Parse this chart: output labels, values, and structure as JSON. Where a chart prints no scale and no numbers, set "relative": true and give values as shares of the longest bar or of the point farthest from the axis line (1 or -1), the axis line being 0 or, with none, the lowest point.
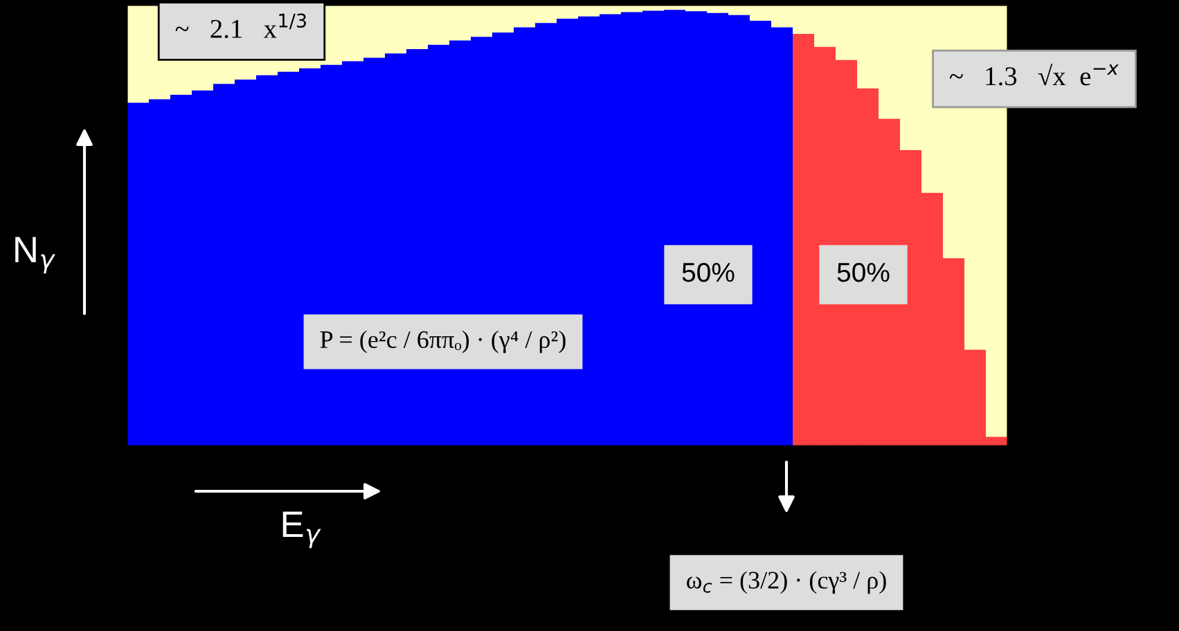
{
  "chart_data": {
    "type": "bar",
    "relative": true,
    "xlabel": "E$_{γ}$",
    "ylabel": "N$_{γ}$",
    "categories": [
      null,
      null,
      null,
      null,
      null,
      null,
      null,
      null,
      null,
      null,
      null,
      null,
      null,
      null,
      null,
      null,
      null,
      null,
      null,
      null,
      null,
      null,
      null,
      null,
      null,
      null,
      null,
      null,
      null,
      null,
      null,
      null,
      null,
      null,
      null,
      null,
      null,
      null,
      null,
      null,
      null
    ],
    "values": [
      0.787,
      0.795,
      0.805,
      0.815,
      0.83,
      0.84,
      0.85,
      0.858,
      0.866,
      0.874,
      0.882,
      0.89,
      0.9,
      0.91,
      0.92,
      0.93,
      0.938,
      0.948,
      0.96,
      0.97,
      0.98,
      0.985,
      0.99,
      0.995,
      0.998,
      1.0,
      0.997,
      0.993,
      0.988,
      0.975,
      0.96,
      0.945,
      0.915,
      0.885,
      0.82,
      0.75,
      0.678,
      0.58,
      0.43,
      0.22,
      0.02
    ],
    "colors": [
      "#0000ff",
      "#0000ff",
      "#0000ff",
      "#0000ff",
      "#0000ff",
      "#0000ff",
      "#0000ff",
      "#0000ff",
      "#0000ff",
      "#0000ff",
      "#0000ff",
      "#0000ff",
      "#0000ff",
      "#0000ff",
      "#0000ff",
      "#0000ff",
      "#0000ff",
      "#0000ff",
      "#0000ff",
      "#0000ff",
      "#0000ff",
      "#0000ff",
      "#0000ff",
      "#0000ff",
      "#0000ff",
      "#0000ff",
      "#0000ff",
      "#0000ff",
      "#0000ff",
      "#0000ff",
      "#0000ff",
      "#ff4040",
      "#ff4040",
      "#ff4040",
      "#ff4040",
      "#ff4040",
      "#ff4040",
      "#ff4040",
      "#ff4040",
      "#ff4040",
      "#ff4040"
    ],
    "annotations": [
      "~   2.1   x$^{1/3}$",
      "~   1.3   √x  e$^{−x}$",
      "50%",
      "50%",
      "P = (e²c / 6ππₒ) · (γ⁴ / ρ²)",
      "ω$_{c}$ = (3/2) · (cγ³ / ρ)"
    ]
  }
}
